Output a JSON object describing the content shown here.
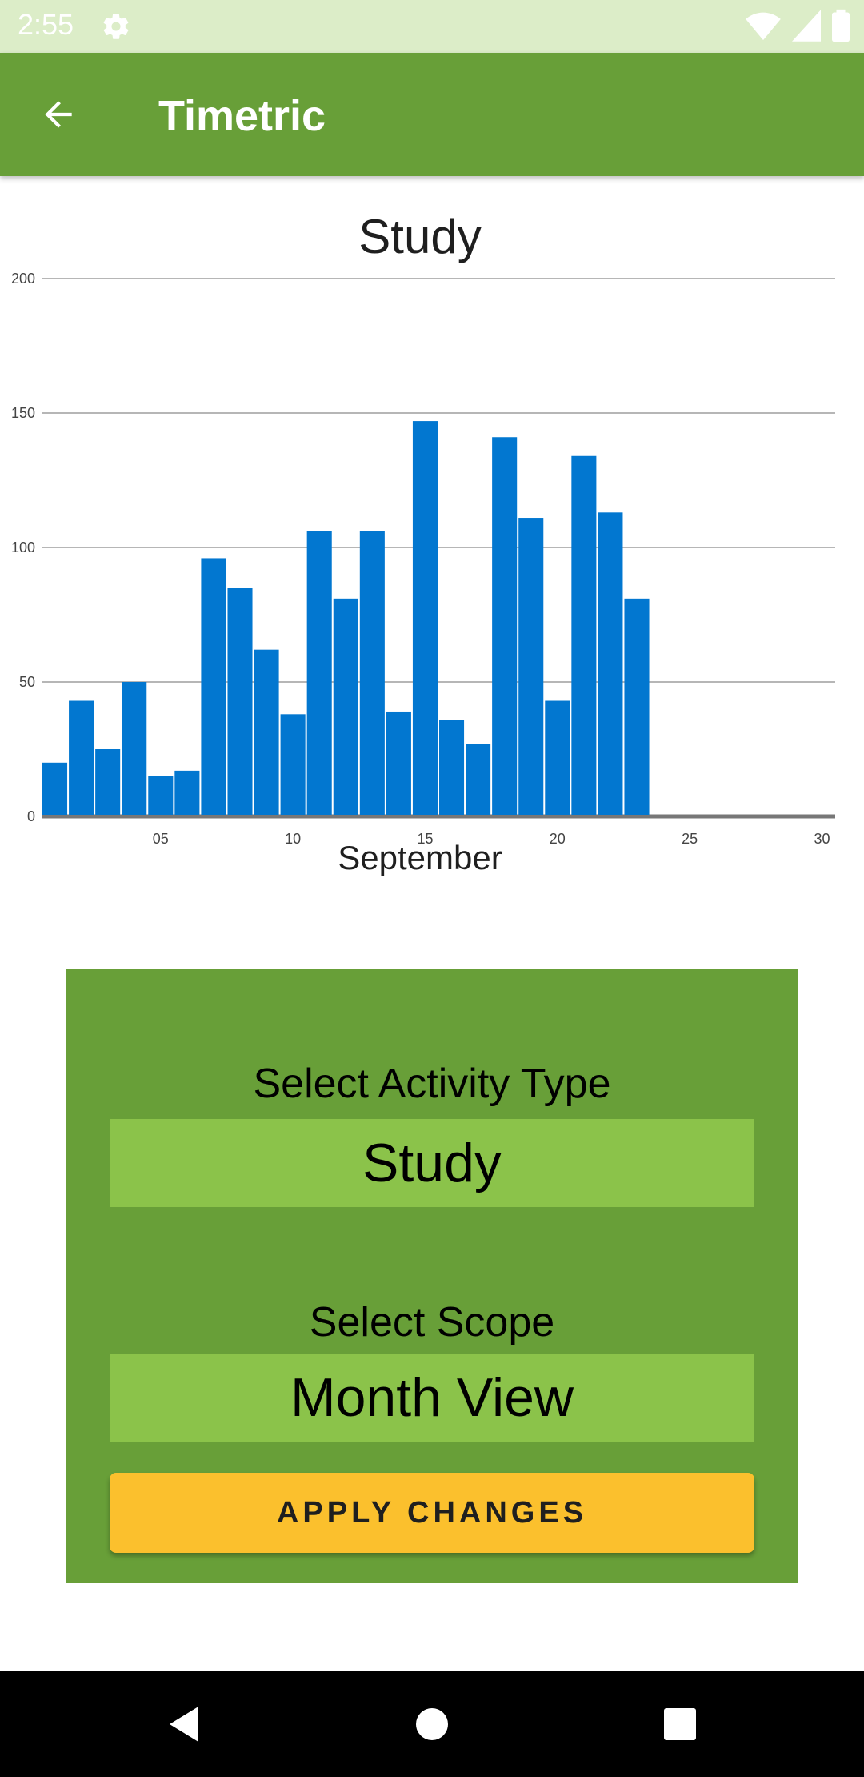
{
  "status_bar": {
    "time": "2:55",
    "icons": [
      "gear-icon",
      "wifi-icon",
      "signal-icon",
      "battery-icon"
    ]
  },
  "app_bar": {
    "title": "Timetric",
    "back_icon": "arrow-left-icon"
  },
  "chart_data": {
    "type": "bar",
    "title": "Study",
    "xlabel": "September",
    "ylabel": "",
    "x": [
      1,
      2,
      3,
      4,
      5,
      6,
      7,
      8,
      9,
      10,
      11,
      12,
      13,
      14,
      15,
      16,
      17,
      18,
      19,
      20,
      21,
      22,
      23
    ],
    "values": [
      20,
      43,
      25,
      50,
      15,
      17,
      96,
      85,
      62,
      38,
      106,
      81,
      106,
      39,
      147,
      36,
      27,
      141,
      111,
      43,
      134,
      113,
      81
    ],
    "xlim": [
      0.5,
      30.5
    ],
    "ylim": [
      0,
      200
    ],
    "x_ticks": [
      "05",
      "10",
      "15",
      "20",
      "25",
      "30"
    ],
    "y_ticks": [
      "0",
      "50",
      "100",
      "150",
      "200"
    ],
    "grid": true,
    "bar_color": "#0277d0"
  },
  "controls": {
    "activity_label": "Select Activity Type",
    "activity_value": "Study",
    "scope_label": "Select Scope",
    "scope_value": "Month View",
    "apply_label": "APPLY CHANGES"
  },
  "nav_bar": {
    "icons": [
      "back-triangle-icon",
      "home-circle-icon",
      "recents-square-icon"
    ]
  },
  "colors": {
    "primary": "#689f38",
    "status_bar": "#dcedc8",
    "select_bg": "#8bc34a",
    "accent": "#fbc02d"
  }
}
